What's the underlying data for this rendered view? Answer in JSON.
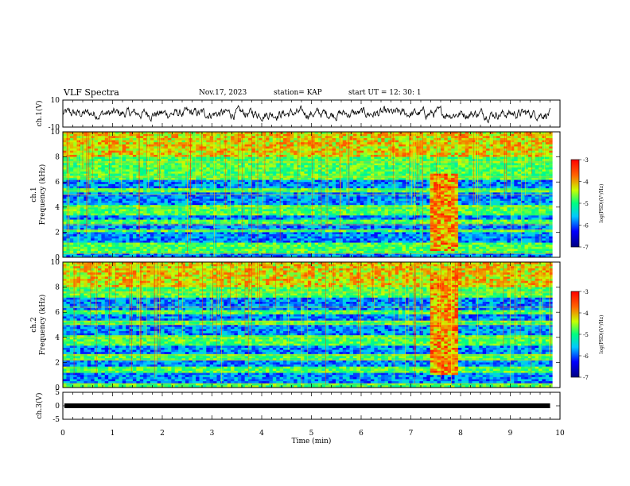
{
  "header": {
    "title": "VLF Spectra",
    "date": "Nov.17, 2023",
    "station": "station= KAP",
    "start": "start  UT  =    12: 30: 1"
  },
  "chart_data": [
    {
      "type": "line",
      "panel": "ch1-waveform",
      "ylabel": "ch.1(V)",
      "ylim": [
        -10,
        10
      ],
      "yticks": [
        "10",
        "-10"
      ],
      "xlim": [
        0,
        10
      ],
      "note_values": "noisy waveform oscillating roughly between -6 and 6 V over 0–9.8 min"
    },
    {
      "type": "heatmap",
      "panel": "ch1-spectrogram",
      "ylabel": "ch.1\nFrequency (kHz)",
      "ylabel_line1": "ch.1",
      "ylabel_line2": "Frequency (kHz)",
      "ylim": [
        0,
        10
      ],
      "yticks": [
        "0",
        "2",
        "4",
        "6",
        "8",
        "10"
      ],
      "xlim": [
        0,
        10
      ],
      "data_end_min": 9.85,
      "dominant_band_kHz": [
        [
          0.0,
          0.4
        ],
        [
          1.2,
          2.0
        ],
        [
          2.2,
          2.6
        ],
        [
          3.0,
          3.4
        ],
        [
          4.2,
          5.2
        ],
        [
          5.5,
          6.1
        ]
      ],
      "event": {
        "t_start": 7.38,
        "t_end": 7.98,
        "f_range": [
          0.5,
          6.6
        ]
      },
      "colorbar": {
        "label": "log(PSD)(V²/Hz)",
        "range": [
          -7,
          -3
        ],
        "ticks": [
          "-3",
          "-4",
          "-5",
          "-6",
          "-7"
        ]
      }
    },
    {
      "type": "heatmap",
      "panel": "ch2-spectrogram",
      "ylabel": "ch.2\nFrequency (kHz)",
      "ylabel_line1": "ch.2",
      "ylabel_line2": "Frequency (kHz)",
      "ylim": [
        0,
        10
      ],
      "yticks": [
        "0",
        "2",
        "4",
        "6",
        "8",
        "10"
      ],
      "xlim": [
        0,
        10
      ],
      "data_end_min": 9.85,
      "dominant_band_kHz": [
        [
          0.4,
          1.2
        ],
        [
          1.6,
          2.1
        ],
        [
          2.7,
          3.4
        ],
        [
          4.2,
          5.0
        ],
        [
          5.4,
          5.9
        ],
        [
          6.2,
          7.2
        ]
      ],
      "event": {
        "t_start": 7.38,
        "t_end": 7.98,
        "f_range": [
          1.0,
          9.4
        ]
      },
      "colorbar": {
        "label": "log(PSD)(V²/Hz)",
        "range": [
          -7,
          -3
        ],
        "ticks": [
          "-3",
          "-4",
          "-5",
          "-6",
          "-7"
        ]
      }
    },
    {
      "type": "line",
      "panel": "ch3-waveform",
      "ylabel": "ch.3(V)",
      "ylim": [
        -5,
        5
      ],
      "yticks": [
        "5",
        "0",
        "-5"
      ],
      "xlim": [
        0,
        10
      ],
      "note_values": "dense signal near 0 V with small amplitude"
    }
  ],
  "xaxis": {
    "label": "Time  (min)",
    "ticks": [
      "0",
      "1",
      "2",
      "3",
      "4",
      "5",
      "6",
      "7",
      "8",
      "9",
      "10"
    ]
  }
}
